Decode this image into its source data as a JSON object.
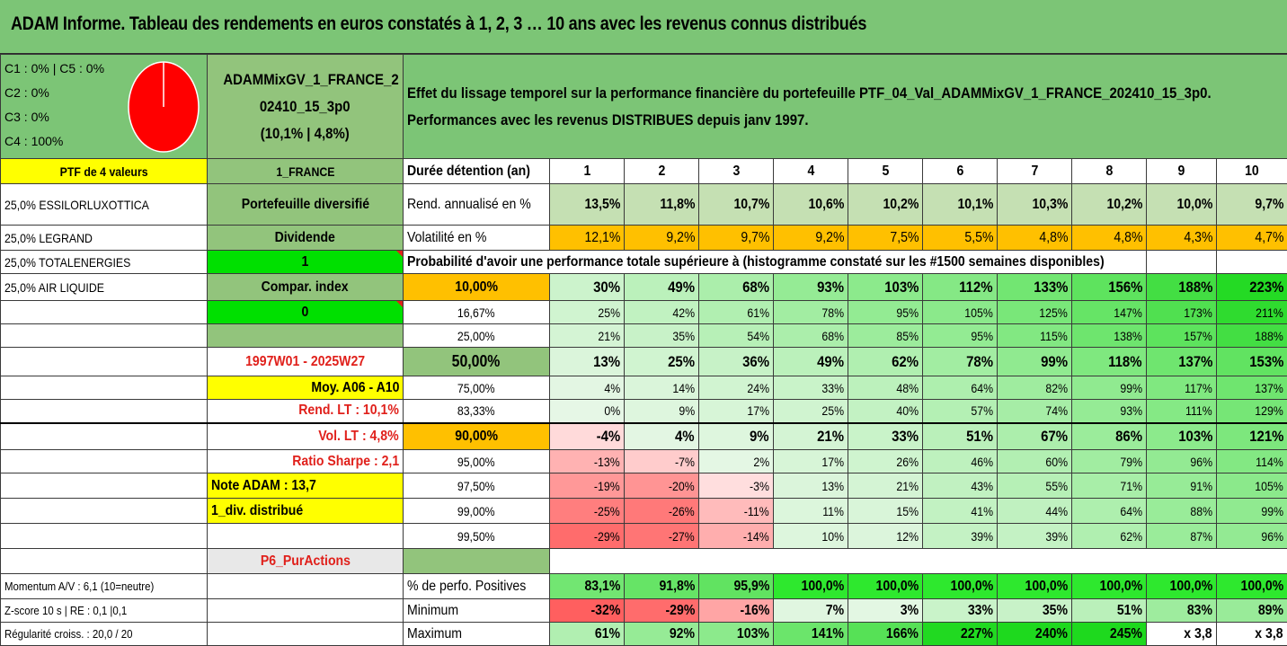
{
  "title": "ADAM Informe. Tableau des rendements en euros constatés à 1, 2, 3 … 10 ans avec les revenus connus distribués",
  "header": {
    "legend": [
      "C1 : 0% | C5 : 0%",
      "C2 : 0%",
      "C3 : 0%",
      "C4 : 100%"
    ],
    "pie_c4_share": 100,
    "pie_color": "#ff0000",
    "fund_lines": [
      "ADAMMixGV_1_FRANCE_2",
      "02410_15_3p0",
      "(10,1% | 4,8%)"
    ],
    "description_lines": [
      "Effet du lissage temporel sur la performance financière du portefeuille PTF_04_Val_ADAMMixGV_1_FRANCE_202410_15_3p0.",
      "Performances avec les revenus DISTRIBUES depuis janv 1997."
    ]
  },
  "left": {
    "ptf_label": "PTF de 4 valeurs",
    "holdings": [
      "25,0% ESSILORLUXOTTICA",
      "25,0% LEGRAND",
      "25,0% TOTALENERGIES",
      "25,0% AIR LIQUIDE"
    ],
    "momentum": "Momentum A/V : 6,1 (10=neutre)",
    "zscore": "Z-score 10 s | RE : 0,1 |0,1",
    "regularite": "Régularité croiss. : 20,0 / 20"
  },
  "mid": {
    "region": "1_FRANCE",
    "portfolio_type": "Portefeuille diversifié",
    "dividend_label": "Dividende",
    "dividend_value": "1",
    "compar_label": "Compar. index",
    "compar_value": "0",
    "period": "1997W01 - 2025W27",
    "moy": "Moy. A06 - A10",
    "rend_lt": "Rend. LT : 10,1%",
    "vol_lt": "Vol. LT : 4,8%",
    "sharpe": "Ratio Sharpe : 2,1",
    "note": "Note ADAM : 13,7",
    "div_distrib": "1_div. distribué",
    "p6": "P6_PurActions"
  },
  "table": {
    "duration_label": "Durée détention (an)",
    "years": [
      "1",
      "2",
      "3",
      "4",
      "5",
      "6",
      "7",
      "8",
      "9",
      "10"
    ],
    "rend_label": "Rend. annualisé en %",
    "rend": [
      "13,5%",
      "11,8%",
      "10,7%",
      "10,6%",
      "10,2%",
      "10,1%",
      "10,3%",
      "10,2%",
      "10,0%",
      "9,7%"
    ],
    "vol_label": "Volatilité en %",
    "vol": [
      "12,1%",
      "9,2%",
      "9,7%",
      "9,2%",
      "7,5%",
      "5,5%",
      "4,8%",
      "4,8%",
      "4,3%",
      "4,7%"
    ],
    "prob_title": "Probabilité d'avoir une performance totale supérieure à (histogramme constaté sur les #1500 semaines disponibles)",
    "quantiles": [
      {
        "q": "10,00%",
        "v": [
          "30%",
          "49%",
          "68%",
          "93%",
          "103%",
          "112%",
          "133%",
          "156%",
          "188%",
          "223%"
        ]
      },
      {
        "q": "16,67%",
        "v": [
          "25%",
          "42%",
          "61%",
          "78%",
          "95%",
          "105%",
          "125%",
          "147%",
          "173%",
          "211%"
        ]
      },
      {
        "q": "25,00%",
        "v": [
          "21%",
          "35%",
          "54%",
          "68%",
          "85%",
          "95%",
          "115%",
          "138%",
          "157%",
          "188%"
        ]
      },
      {
        "q": "50,00%",
        "v": [
          "13%",
          "25%",
          "36%",
          "49%",
          "62%",
          "78%",
          "99%",
          "118%",
          "137%",
          "153%"
        ]
      },
      {
        "q": "75,00%",
        "v": [
          "4%",
          "14%",
          "24%",
          "33%",
          "48%",
          "64%",
          "82%",
          "99%",
          "117%",
          "137%"
        ]
      },
      {
        "q": "83,33%",
        "v": [
          "0%",
          "9%",
          "17%",
          "25%",
          "40%",
          "57%",
          "74%",
          "93%",
          "111%",
          "129%"
        ]
      },
      {
        "q": "90,00%",
        "v": [
          "-4%",
          "4%",
          "9%",
          "21%",
          "33%",
          "51%",
          "67%",
          "86%",
          "103%",
          "121%"
        ]
      },
      {
        "q": "95,00%",
        "v": [
          "-13%",
          "-7%",
          "2%",
          "17%",
          "26%",
          "46%",
          "60%",
          "79%",
          "96%",
          "114%"
        ]
      },
      {
        "q": "97,50%",
        "v": [
          "-19%",
          "-20%",
          "-3%",
          "13%",
          "21%",
          "43%",
          "55%",
          "71%",
          "91%",
          "105%"
        ]
      },
      {
        "q": "99,00%",
        "v": [
          "-25%",
          "-26%",
          "-11%",
          "11%",
          "15%",
          "41%",
          "44%",
          "64%",
          "88%",
          "99%"
        ]
      },
      {
        "q": "99,50%",
        "v": [
          "-29%",
          "-27%",
          "-14%",
          "10%",
          "12%",
          "39%",
          "39%",
          "62%",
          "87%",
          "96%"
        ]
      }
    ],
    "pos_label": "% de perfo. Positives",
    "pos": [
      "83,1%",
      "91,8%",
      "95,9%",
      "100,0%",
      "100,0%",
      "100,0%",
      "100,0%",
      "100,0%",
      "100,0%",
      "100,0%"
    ],
    "min_label": "Minimum",
    "min": [
      "-32%",
      "-29%",
      "-16%",
      "7%",
      "3%",
      "33%",
      "35%",
      "51%",
      "83%",
      "89%"
    ],
    "max_label": "Maximum",
    "max": [
      "61%",
      "92%",
      "103%",
      "141%",
      "166%",
      "227%",
      "240%",
      "245%",
      "x 3,8",
      "x 3,8"
    ]
  },
  "colors": {
    "title_green": "#7cc576",
    "label_green": "#92c47c",
    "yellow": "#ffff00",
    "bright_green": "#00e000",
    "orange": "#ffc000",
    "red_text": "#e0201b"
  }
}
